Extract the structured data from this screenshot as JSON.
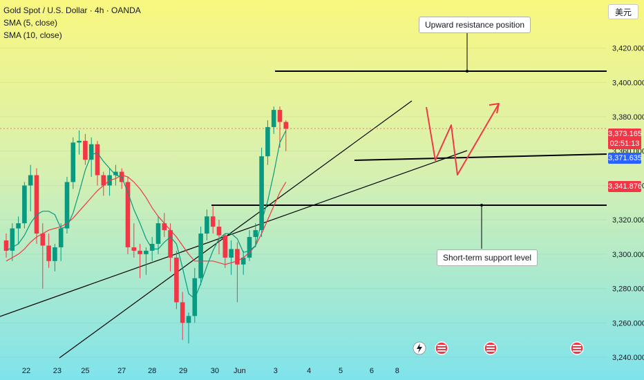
{
  "chart_data": {
    "type": "candlestick",
    "title": "Gold Spot / U.S. Dollar · 4h · OANDA",
    "indicators": [
      "SMA (5, close)",
      "SMA (10, close)"
    ],
    "currency": "美元",
    "ylim": [
      3238,
      3448
    ],
    "y_ticks": [
      "3,240.000",
      "3,260.000",
      "3,280.000",
      "3,300.000",
      "3,320.000",
      "3,340.000",
      "3,360.000",
      "3,380.000",
      "3,400.000",
      "3,420.000"
    ],
    "x_labels": [
      {
        "label": "22",
        "bar": 3.3
      },
      {
        "label": "23",
        "bar": 8.4
      },
      {
        "label": "25",
        "bar": 13.0
      },
      {
        "label": "27",
        "bar": 19.0
      },
      {
        "label": "28",
        "bar": 24.0
      },
      {
        "label": "29",
        "bar": 29.1
      },
      {
        "label": "30",
        "bar": 34.3
      },
      {
        "label": "Jun",
        "bar": 38.4
      },
      {
        "label": "3",
        "bar": 44.3
      },
      {
        "label": "4",
        "bar": 49.8
      },
      {
        "label": "5",
        "bar": 55.0
      },
      {
        "label": "6",
        "bar": 60.1
      },
      {
        "label": "8",
        "bar": 64.3
      }
    ],
    "candles": [
      [
        3308,
        3312,
        3298,
        3302
      ],
      [
        3302,
        3318,
        3296,
        3315
      ],
      [
        3315,
        3322,
        3306,
        3318
      ],
      [
        3318,
        3342,
        3315,
        3340
      ],
      [
        3340,
        3352,
        3325,
        3346
      ],
      [
        3346,
        3350,
        3306,
        3312
      ],
      [
        3312,
        3318,
        3280,
        3305
      ],
      [
        3305,
        3312,
        3292,
        3296
      ],
      [
        3296,
        3306,
        3290,
        3304
      ],
      [
        3304,
        3318,
        3296,
        3315
      ],
      [
        3315,
        3345,
        3312,
        3342
      ],
      [
        3342,
        3368,
        3338,
        3365
      ],
      [
        3365,
        3372,
        3358,
        3366
      ],
      [
        3366,
        3370,
        3352,
        3355
      ],
      [
        3355,
        3368,
        3345,
        3364
      ],
      [
        3364,
        3366,
        3340,
        3346
      ],
      [
        3346,
        3348,
        3334,
        3340
      ],
      [
        3340,
        3350,
        3334,
        3346
      ],
      [
        3346,
        3352,
        3340,
        3348
      ],
      [
        3348,
        3350,
        3338,
        3342
      ],
      [
        3342,
        3345,
        3300,
        3304
      ],
      [
        3304,
        3318,
        3298,
        3302
      ],
      [
        3302,
        3306,
        3286,
        3300
      ],
      [
        3300,
        3304,
        3288,
        3302
      ],
      [
        3302,
        3310,
        3296,
        3306
      ],
      [
        3306,
        3322,
        3300,
        3318
      ],
      [
        3318,
        3324,
        3310,
        3314
      ],
      [
        3314,
        3318,
        3290,
        3298
      ],
      [
        3298,
        3302,
        3268,
        3272
      ],
      [
        3272,
        3278,
        3250,
        3260
      ],
      [
        3260,
        3266,
        3248,
        3264
      ],
      [
        3264,
        3292,
        3260,
        3286
      ],
      [
        3286,
        3316,
        3282,
        3312
      ],
      [
        3312,
        3326,
        3308,
        3322
      ],
      [
        3322,
        3328,
        3312,
        3316
      ],
      [
        3316,
        3320,
        3300,
        3311
      ],
      [
        3311,
        3312,
        3292,
        3298
      ],
      [
        3298,
        3308,
        3288,
        3303
      ],
      [
        3303,
        3307,
        3272,
        3294
      ],
      [
        3294,
        3302,
        3288,
        3298
      ],
      [
        3298,
        3314,
        3296,
        3310
      ],
      [
        3310,
        3318,
        3304,
        3314
      ],
      [
        3314,
        3362,
        3310,
        3357
      ],
      [
        3357,
        3378,
        3352,
        3374
      ],
      [
        3374,
        3386,
        3370,
        3384
      ],
      [
        3384,
        3386,
        3362,
        3377
      ],
      [
        3377,
        3378,
        3360,
        3373
      ]
    ],
    "sma5": [
      3302,
      3304,
      3306,
      3311,
      3318,
      3323,
      3325,
      3325,
      3323,
      3315,
      3316,
      3324,
      3336,
      3349,
      3358,
      3359,
      3354,
      3350,
      3346,
      3345,
      3336,
      3326,
      3318,
      3309,
      3303,
      3303,
      3307,
      3310,
      3306,
      3292,
      3277,
      3274,
      3283,
      3293,
      3302,
      3309,
      3312,
      3312,
      3309,
      3301,
      3302,
      3305,
      3319,
      3331,
      3347,
      3365,
      3372
    ],
    "sma10": [
      3296,
      3298,
      3300,
      3303,
      3307,
      3310,
      3312,
      3314,
      3315,
      3316,
      3318,
      3321,
      3325,
      3329,
      3333,
      3337,
      3340,
      3343,
      3344,
      3346,
      3345,
      3342,
      3338,
      3333,
      3327,
      3322,
      3318,
      3314,
      3310,
      3305,
      3300,
      3296,
      3296,
      3296,
      3296,
      3295,
      3294,
      3295,
      3296,
      3298,
      3301,
      3305,
      3312,
      3320,
      3328,
      3336,
      3342
    ],
    "price_tags": [
      {
        "value": 3373.165,
        "label": "3,373.165",
        "sub": "02:51:13",
        "color": "#f23645"
      },
      {
        "value": 3371.635,
        "label": "3,371.635",
        "color": "#2962ff"
      },
      {
        "value": 3341.876,
        "label": "3,341.876",
        "color": "#f23645"
      }
    ],
    "annotations": [
      {
        "text": "Upward resistance position"
      },
      {
        "text": "Short-term support level"
      }
    ],
    "colors": {
      "up": "#089981",
      "down": "#f23645",
      "sma5": "#089981",
      "sma10": "#f23645",
      "drawing": "#000000",
      "projection": "#f23645"
    }
  }
}
